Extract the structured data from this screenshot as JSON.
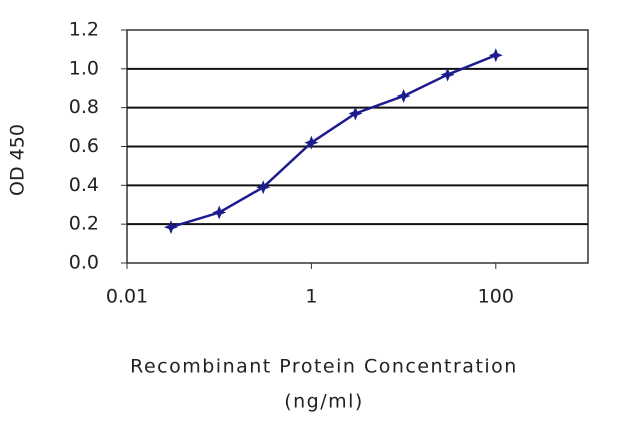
{
  "chart_data": {
    "type": "line",
    "ylabel": "OD 450",
    "xlabel": [
      "Recombinant Protein Concentration",
      "(ng/ml)"
    ],
    "x": [
      0.03,
      0.1,
      0.3,
      1,
      3,
      10,
      30,
      100
    ],
    "series": [
      {
        "color": "#1c1c8e",
        "values": [
          0.185,
          0.26,
          0.39,
          0.62,
          0.77,
          0.86,
          0.97,
          1.07
        ]
      }
    ],
    "xlim": [
      0.01,
      1000
    ],
    "xscale": "log",
    "xticks": [
      0.01,
      1,
      100
    ],
    "ylim": [
      0,
      1.2
    ],
    "yticks": [
      {
        "value": 0,
        "label": "0.0"
      },
      0.2,
      0.4,
      0.6,
      0.8,
      {
        "value": 1,
        "label": "1.0"
      },
      1.2
    ],
    "grid": true
  }
}
